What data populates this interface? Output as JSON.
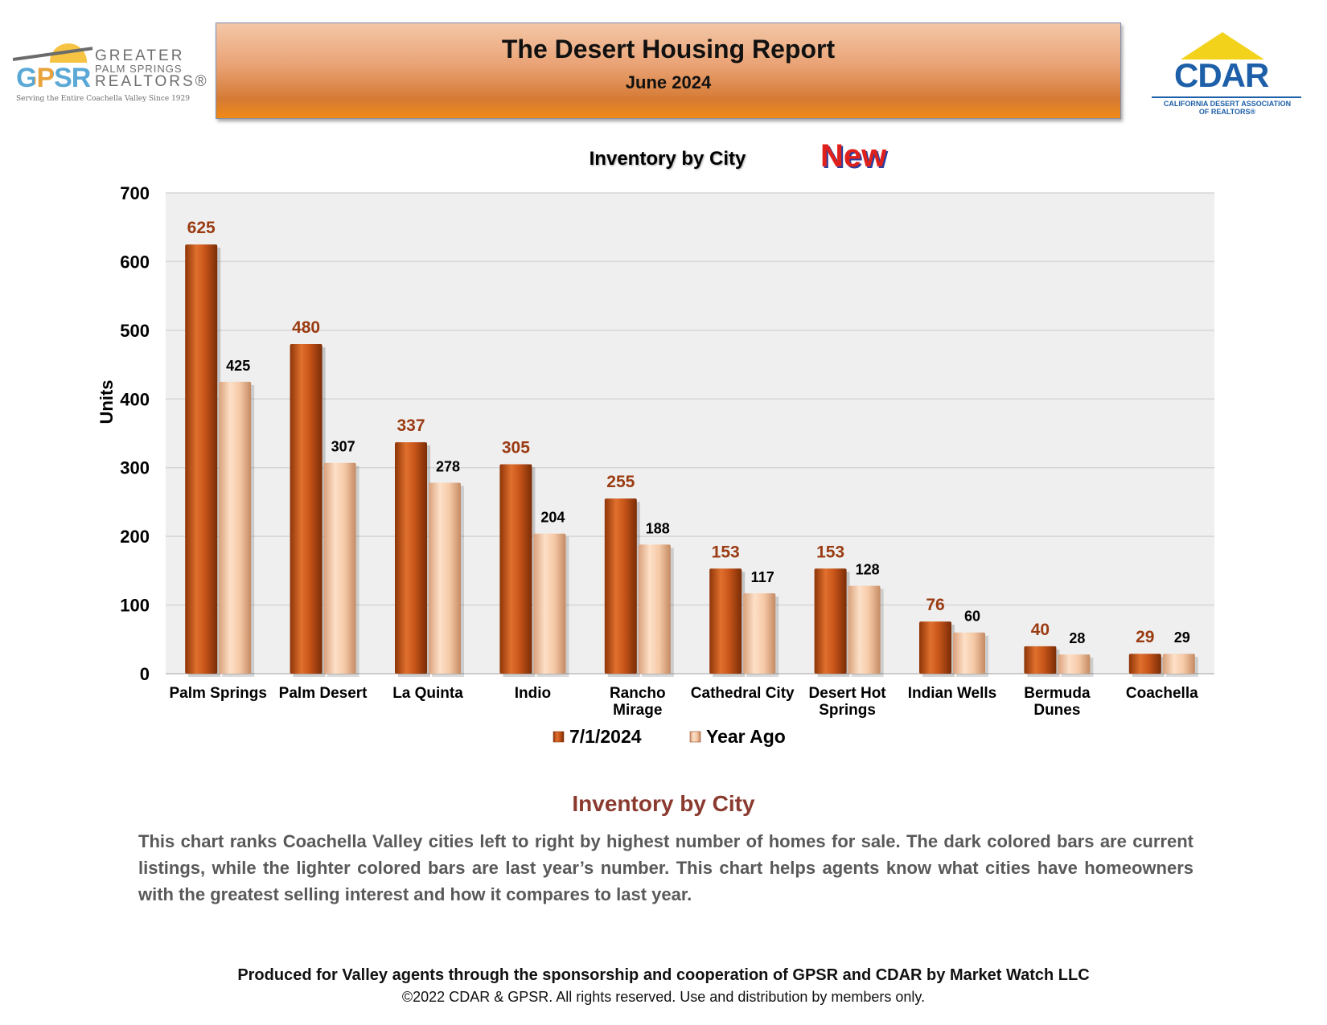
{
  "header": {
    "title": "The Desert Housing Report",
    "subtitle": "June 2024"
  },
  "logos": {
    "gpsr": {
      "mark": "GPSR",
      "line1": "GREATER",
      "line2": "PALM SPRINGS",
      "line3": "REALTORS®",
      "tagline": "Serving the Entire Coachella Valley Since 1929"
    },
    "cdar": {
      "name": "CDAR",
      "line1": "CALIFORNIA DESERT ASSOCIATION",
      "line2": "OF REALTORS®"
    }
  },
  "new_label": "New",
  "chart_data": {
    "type": "bar",
    "title": "Inventory by City",
    "ylabel": "Units",
    "xlabel": "",
    "ylim": [
      0,
      700
    ],
    "yticks": [
      0,
      100,
      200,
      300,
      400,
      500,
      600,
      700
    ],
    "grid": true,
    "legend_position": "bottom",
    "categories": [
      [
        "Palm Springs"
      ],
      [
        "Palm Desert"
      ],
      [
        "La Quinta"
      ],
      [
        "Indio"
      ],
      [
        "Rancho",
        "Mirage"
      ],
      [
        "Cathedral City"
      ],
      [
        "Desert Hot",
        "Springs"
      ],
      [
        "Indian Wells"
      ],
      [
        "Bermuda",
        "Dunes"
      ],
      [
        "Coachella"
      ]
    ],
    "series": [
      {
        "name": "7/1/2024",
        "color": "#c9561a",
        "values": [
          625,
          480,
          337,
          305,
          255,
          153,
          153,
          76,
          40,
          29
        ]
      },
      {
        "name": "Year Ago",
        "color": "#f5c9a6",
        "values": [
          425,
          307,
          278,
          204,
          188,
          117,
          128,
          60,
          28,
          29
        ]
      }
    ]
  },
  "description": {
    "title": "Inventory by City",
    "body": "This chart ranks Coachella Valley cities left to right by highest number of homes for sale. The dark colored bars are current listings, while the lighter colored bars are last year’s number. This chart helps agents know what cities have homeowners with the greatest selling interest and how it compares to last year."
  },
  "footer": {
    "line1": "Produced for Valley agents through the sponsorship and cooperation of GPSR and CDAR by Market Watch LLC",
    "line2": "©2022 CDAR & GPSR.  All rights reserved.  Use and distribution by members only."
  }
}
